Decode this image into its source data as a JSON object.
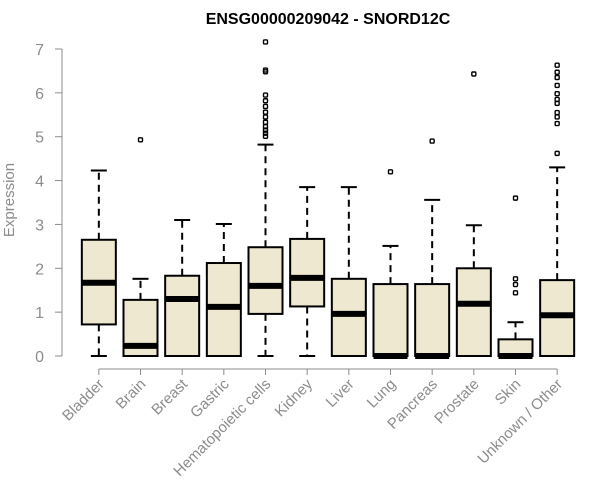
{
  "chart_data": {
    "type": "boxplot",
    "title": "ENSG00000209042 - SNORD12C",
    "xlabel": "",
    "ylabel": "Expression",
    "ylim": [
      0,
      7
    ],
    "yticks": [
      0,
      1,
      2,
      3,
      4,
      5,
      6,
      7
    ],
    "grid": false,
    "legend": "none",
    "colors": {
      "box_fill": "#efe8d0",
      "box_stroke": "#000000",
      "axis": "#8c8c8c"
    },
    "categories": [
      "Bladder",
      "Brain",
      "Breast",
      "Gastric",
      "Hematopoietic cells",
      "Kidney",
      "Liver",
      "Lung",
      "Pancreas",
      "Prostate",
      "Skin",
      "Unknown / Other"
    ],
    "boxes": [
      {
        "category": "Bladder",
        "whisker_low": 0.0,
        "q1": 0.72,
        "median": 1.67,
        "q3": 2.65,
        "whisker_high": 4.23,
        "outliers": []
      },
      {
        "category": "Brain",
        "whisker_low": 0.0,
        "q1": 0.0,
        "median": 0.23,
        "q3": 1.28,
        "whisker_high": 1.76,
        "outliers": [
          4.93
        ]
      },
      {
        "category": "Breast",
        "whisker_low": 0.0,
        "q1": 0.0,
        "median": 1.3,
        "q3": 1.83,
        "whisker_high": 3.1,
        "outliers": []
      },
      {
        "category": "Gastric",
        "whisker_low": 0.0,
        "q1": 0.0,
        "median": 1.12,
        "q3": 2.12,
        "whisker_high": 3.01,
        "outliers": []
      },
      {
        "category": "Hematopoietic cells",
        "whisker_low": 0.0,
        "q1": 0.96,
        "median": 1.6,
        "q3": 2.48,
        "whisker_high": 4.82,
        "outliers": [
          5.01,
          5.08,
          5.15,
          5.23,
          5.33,
          5.45,
          5.56,
          5.69,
          5.82,
          5.95,
          6.48,
          6.52,
          7.16
        ]
      },
      {
        "category": "Kidney",
        "whisker_low": 0.0,
        "q1": 1.13,
        "median": 1.78,
        "q3": 2.67,
        "whisker_high": 3.85,
        "outliers": []
      },
      {
        "category": "Liver",
        "whisker_low": 0.0,
        "q1": 0.0,
        "median": 0.96,
        "q3": 1.76,
        "whisker_high": 3.85,
        "outliers": []
      },
      {
        "category": "Lung",
        "whisker_low": 0.0,
        "q1": 0.0,
        "median": 0.0,
        "q3": 1.64,
        "whisker_high": 2.51,
        "outliers": [
          4.2
        ]
      },
      {
        "category": "Pancreas",
        "whisker_low": 0.0,
        "q1": 0.0,
        "median": 0.0,
        "q3": 1.64,
        "whisker_high": 3.56,
        "outliers": [
          4.9
        ]
      },
      {
        "category": "Prostate",
        "whisker_low": 0.0,
        "q1": 0.0,
        "median": 1.19,
        "q3": 2.0,
        "whisker_high": 2.98,
        "outliers": [
          6.43
        ]
      },
      {
        "category": "Skin",
        "whisker_low": 0.0,
        "q1": 0.0,
        "median": 0.0,
        "q3": 0.38,
        "whisker_high": 0.77,
        "outliers": [
          1.44,
          1.63,
          1.76,
          3.6
        ]
      },
      {
        "category": "Unknown / Other",
        "whisker_low": 0.0,
        "q1": 0.0,
        "median": 0.93,
        "q3": 1.73,
        "whisker_high": 4.3,
        "outliers": [
          4.62,
          5.3,
          5.45,
          5.55,
          5.76,
          5.85,
          5.98,
          6.17,
          6.35,
          6.47,
          6.63
        ]
      }
    ]
  }
}
